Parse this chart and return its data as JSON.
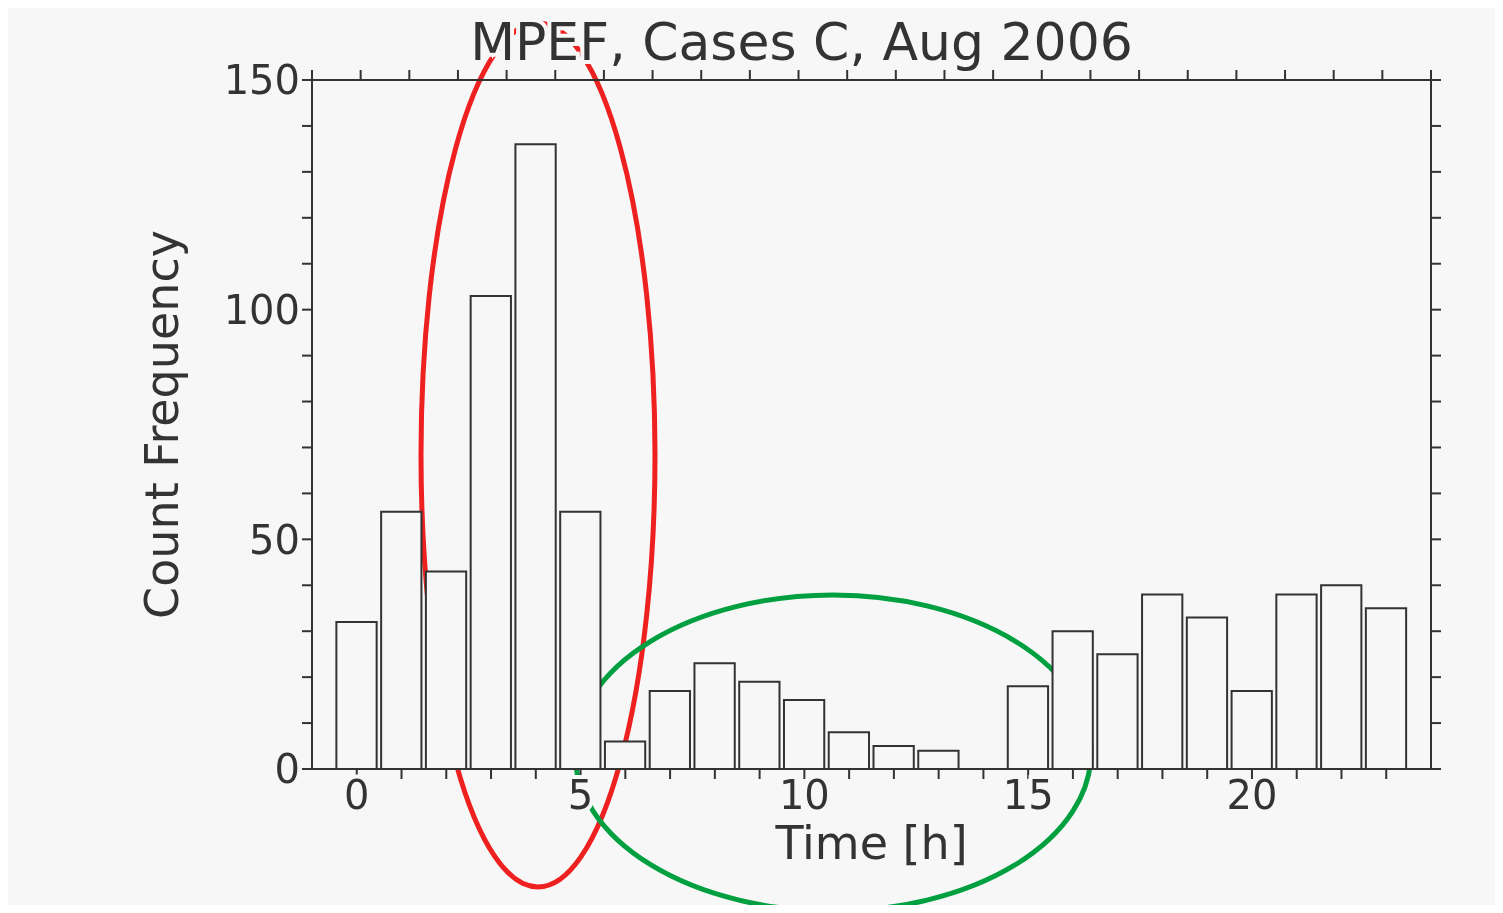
{
  "chart_data": {
    "type": "histogram",
    "title": "MPEF, Cases C, Aug 2006",
    "xlabel": "Time [h]",
    "ylabel": "Count Frequency",
    "bins": [
      -0.5,
      0.5,
      1.5,
      2.5,
      3.5,
      4.5,
      5.5,
      6.5,
      7.5,
      8.5,
      9.5,
      10.5,
      11.5,
      12.5,
      13.5,
      14.5,
      15.5,
      16.5,
      17.5,
      18.5,
      19.5,
      20.5,
      21.5,
      22.5,
      23.5
    ],
    "values": [
      32,
      56,
      43,
      103,
      136,
      56,
      6,
      17,
      23,
      19,
      15,
      8,
      5,
      4,
      0,
      18,
      30,
      25,
      38,
      33,
      17,
      38,
      40,
      35
    ],
    "color": "#f7f7f7",
    "xlim": [
      -1,
      24
    ],
    "xticks": [
      0,
      {
        "value": 1,
        "label": null
      },
      {
        "value": 2,
        "label": null
      },
      {
        "value": 3,
        "label": null
      },
      {
        "value": 4,
        "label": null
      },
      5,
      {
        "value": 6,
        "label": null
      },
      {
        "value": 7,
        "label": null
      },
      {
        "value": 8,
        "label": null
      },
      {
        "value": 9,
        "label": null
      },
      10,
      {
        "value": 11,
        "label": null
      },
      {
        "value": 12,
        "label": null
      },
      {
        "value": 13,
        "label": null
      },
      {
        "value": 14,
        "label": null
      },
      15,
      {
        "value": 16,
        "label": null
      },
      {
        "value": 17,
        "label": null
      },
      {
        "value": 18,
        "label": null
      },
      {
        "value": 19,
        "label": null
      },
      20,
      {
        "value": 21,
        "label": null
      },
      {
        "value": 22,
        "label": null
      },
      {
        "value": 23,
        "label": null
      }
    ],
    "ylim": [
      0,
      150
    ],
    "yticks": [
      0,
      {
        "value": 10,
        "label": null
      },
      {
        "value": 20,
        "label": null
      },
      {
        "value": 30,
        "label": null
      },
      {
        "value": 40,
        "label": null
      },
      50,
      {
        "value": 60,
        "label": null
      },
      {
        "value": 70,
        "label": null
      },
      {
        "value": 80,
        "label": null
      },
      {
        "value": 90,
        "label": null
      },
      100,
      {
        "value": 110,
        "label": null
      },
      {
        "value": 120,
        "label": null
      },
      {
        "value": 130,
        "label": null
      },
      {
        "value": 140,
        "label": null
      },
      150
    ],
    "grid": false,
    "legend": false
  }
}
